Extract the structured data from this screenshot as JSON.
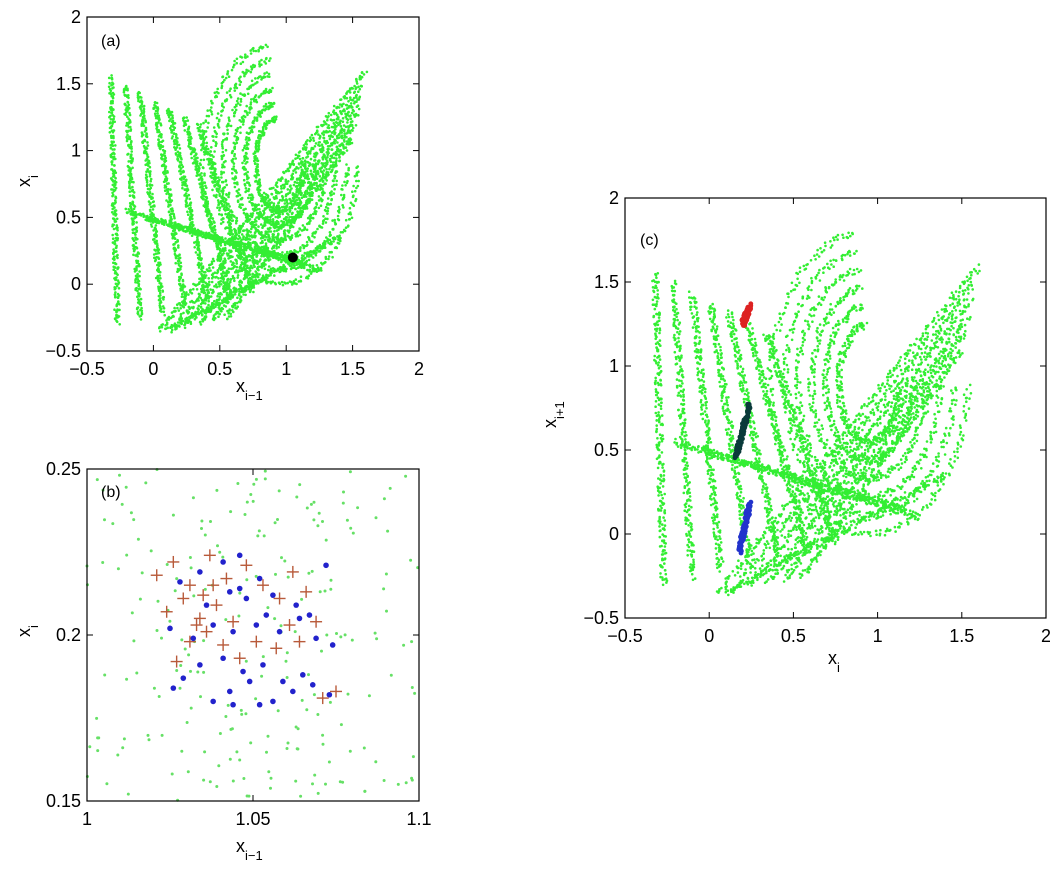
{
  "chart_data": [
    {
      "panel": "(a)",
      "type": "scatter",
      "xlim": [
        -0.5,
        2
      ],
      "ylim": [
        -0.5,
        2
      ],
      "xticks": [
        "−0.5",
        "0",
        "0.5",
        "1",
        "1.5",
        "2"
      ],
      "yticks": [
        "−0.5",
        "0",
        "0.5",
        "1",
        "1.5",
        "2"
      ],
      "xlabel": {
        "main": "x",
        "sub": "i−1"
      },
      "ylabel": {
        "main": "x",
        "sub": "i"
      },
      "attractor_color": "#33ee33",
      "highlight_point": {
        "x": 1.05,
        "y": 0.2,
        "color": "#000000"
      }
    },
    {
      "panel": "(b)",
      "type": "scatter",
      "xlim": [
        1,
        1.1
      ],
      "ylim": [
        0.15,
        0.25
      ],
      "xticks": [
        "1",
        "1.05",
        "1.1"
      ],
      "yticks": [
        "0.15",
        "0.2",
        "0.25"
      ],
      "xlabel": {
        "main": "x",
        "sub": "i−1"
      },
      "ylabel": {
        "main": "x",
        "sub": "i"
      },
      "series": [
        {
          "marker": "plus",
          "color": "#b85a3a",
          "points": [
            [
              1.021,
              0.218
            ],
            [
              1.026,
              0.222
            ],
            [
              1.031,
              0.215
            ],
            [
              1.037,
              0.224
            ],
            [
              1.042,
              0.217
            ],
            [
              1.048,
              0.221
            ],
            [
              1.053,
              0.215
            ],
            [
              1.058,
              0.211
            ],
            [
              1.062,
              0.219
            ],
            [
              1.066,
              0.213
            ],
            [
              1.024,
              0.207
            ],
            [
              1.029,
              0.211
            ],
            [
              1.034,
              0.205
            ],
            [
              1.039,
              0.209
            ],
            [
              1.044,
              0.204
            ],
            [
              1.031,
              0.198
            ],
            [
              1.036,
              0.201
            ],
            [
              1.041,
              0.197
            ],
            [
              1.046,
              0.193
            ],
            [
              1.051,
              0.198
            ],
            [
              1.027,
              0.192
            ],
            [
              1.033,
              0.203
            ],
            [
              1.038,
              0.215
            ],
            [
              1.057,
              0.196
            ],
            [
              1.061,
              0.203
            ],
            [
              1.064,
              0.198
            ],
            [
              1.069,
              0.204
            ],
            [
              1.071,
              0.181
            ],
            [
              1.075,
              0.183
            ],
            [
              1.035,
              0.212
            ]
          ]
        },
        {
          "marker": "dot",
          "color": "#2222cc",
          "points": [
            [
              1.028,
              0.216
            ],
            [
              1.034,
              0.219
            ],
            [
              1.041,
              0.222
            ],
            [
              1.046,
              0.224
            ],
            [
              1.052,
              0.217
            ],
            [
              1.036,
              0.209
            ],
            [
              1.043,
              0.213
            ],
            [
              1.048,
              0.211
            ],
            [
              1.056,
              0.212
            ],
            [
              1.063,
              0.209
            ],
            [
              1.067,
              0.206
            ],
            [
              1.072,
              0.221
            ],
            [
              1.025,
              0.202
            ],
            [
              1.032,
              0.199
            ],
            [
              1.038,
              0.203
            ],
            [
              1.044,
              0.201
            ],
            [
              1.051,
              0.203
            ],
            [
              1.058,
              0.201
            ],
            [
              1.064,
              0.205
            ],
            [
              1.069,
              0.199
            ],
            [
              1.074,
              0.197
            ],
            [
              1.029,
              0.187
            ],
            [
              1.034,
              0.191
            ],
            [
              1.041,
              0.193
            ],
            [
              1.047,
              0.189
            ],
            [
              1.053,
              0.191
            ],
            [
              1.059,
              0.186
            ],
            [
              1.065,
              0.188
            ],
            [
              1.043,
              0.183
            ],
            [
              1.049,
              0.186
            ],
            [
              1.038,
              0.18
            ],
            [
              1.044,
              0.179
            ],
            [
              1.052,
              0.179
            ],
            [
              1.056,
              0.18
            ],
            [
              1.062,
              0.183
            ],
            [
              1.068,
              0.185
            ],
            [
              1.073,
              0.182
            ],
            [
              1.026,
              0.184
            ],
            [
              1.046,
              0.214
            ],
            [
              1.054,
              0.206
            ]
          ]
        }
      ],
      "background_color": "#66e066"
    },
    {
      "panel": "(c)",
      "type": "scatter",
      "xlim": [
        -0.5,
        2
      ],
      "ylim": [
        -0.5,
        2
      ],
      "xticks": [
        "−0.5",
        "0",
        "0.5",
        "1",
        "1.5",
        "2"
      ],
      "yticks": [
        "−0.5",
        "0",
        "0.5",
        "1",
        "1.5",
        "2"
      ],
      "xlabel": {
        "main": "x",
        "sub": "i"
      },
      "ylabel": {
        "main": "x",
        "sub": "i+1"
      },
      "attractor_color": "#33ee33",
      "highlights": [
        {
          "color": "#dd2222",
          "x": [
            0.2,
            0.24
          ],
          "y": [
            1.25,
            1.36
          ]
        },
        {
          "color": "#0a3a3a",
          "x": [
            0.16,
            0.24
          ],
          "y": [
            0.46,
            0.78
          ]
        },
        {
          "color": "#2233cc",
          "x": [
            0.18,
            0.24
          ],
          "y": [
            -0.1,
            0.18
          ]
        }
      ]
    }
  ]
}
